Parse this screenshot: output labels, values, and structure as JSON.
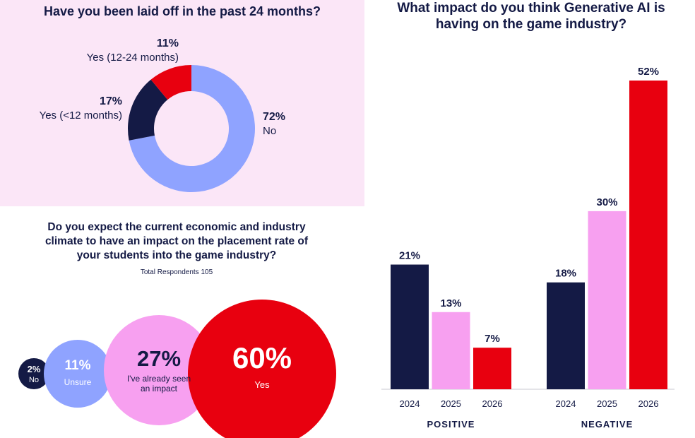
{
  "layoff": {
    "title": "Have you been laid off in the past 24 months?",
    "colors": {
      "no": "#8fa3ff",
      "lt12": "#141a45",
      "y12_24": "#e8000f"
    },
    "chart_data": {
      "type": "pie",
      "title": "Have you been laid off in the past 24 months?",
      "slices": [
        {
          "label": "No",
          "value": 72,
          "pct": "72%",
          "color": "#8fa3ff"
        },
        {
          "label": "Yes (<12 months)",
          "value": 17,
          "pct": "17%",
          "color": "#141a45"
        },
        {
          "label": "Yes (12-24 months)",
          "value": 11,
          "pct": "11%",
          "color": "#e8000f"
        }
      ]
    }
  },
  "placement": {
    "title": "Do you expect the current economic and industry climate to have an impact on the placement rate of your students into the game industry?",
    "title_lines": [
      "Do you expect the current economic and industry",
      "climate to have an impact on the placement rate of",
      "your students into the game industry?"
    ],
    "subtitle": "Total Respondents 105",
    "chart_data": {
      "type": "bubble",
      "items": [
        {
          "label": "No",
          "value": 2,
          "pct": "2%",
          "color": "#141a45",
          "text_color": "#ffffff"
        },
        {
          "label": "Unsure",
          "value": 11,
          "pct": "11%",
          "color": "#8fa3ff",
          "text_color": "#ffffff"
        },
        {
          "label": "I've already seen an impact",
          "label_lines": [
            "I've already seen",
            "an impact"
          ],
          "value": 27,
          "pct": "27%",
          "color": "#f7a0f0",
          "text_color": "#141a45"
        },
        {
          "label": "Yes",
          "value": 60,
          "pct": "60%",
          "color": "#e8000f",
          "text_color": "#ffffff"
        }
      ]
    }
  },
  "ai_impact": {
    "title": "What impact do you think Generative AI is having on the game industry?",
    "title_lines": [
      "What impact do you think Generative AI is",
      "having on the game industry?"
    ],
    "chart_data": {
      "type": "bar",
      "groups": [
        {
          "name": "POSITIVE",
          "categories": [
            "2024",
            "2025",
            "2026"
          ],
          "values": [
            21,
            13,
            7
          ],
          "labels": [
            "21%",
            "13%",
            "7%"
          ]
        },
        {
          "name": "NEGATIVE",
          "categories": [
            "2024",
            "2025",
            "2026"
          ],
          "values": [
            18,
            30,
            52
          ],
          "labels": [
            "18%",
            "30%",
            "52%"
          ]
        }
      ],
      "series_colors": {
        "2024": "#141a45",
        "2025": "#f7a0f0",
        "2026": "#e8000f"
      },
      "ylim": [
        0,
        52
      ]
    }
  }
}
